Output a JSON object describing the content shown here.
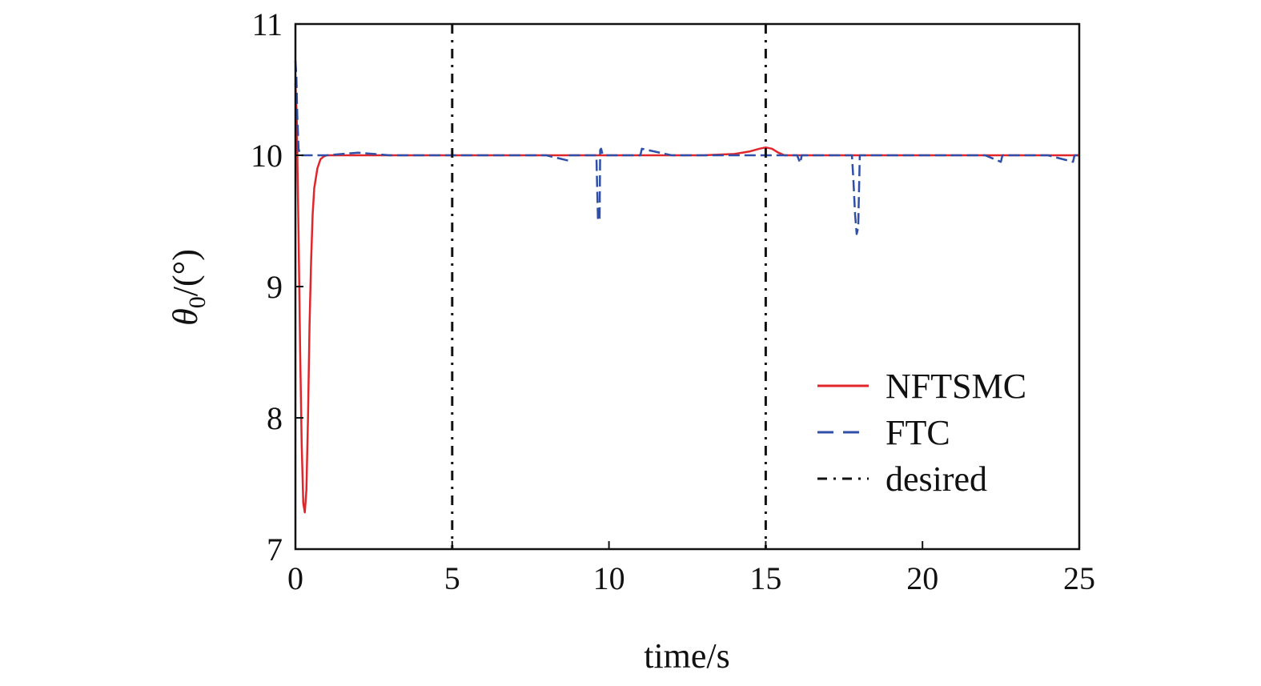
{
  "chart_data": {
    "type": "line",
    "xlabel": "time/s",
    "ylabel_symbol": "θ",
    "ylabel_subscript": "0",
    "ylabel_unit": "/(°)",
    "xlim": [
      0,
      25
    ],
    "ylim": [
      7,
      11
    ],
    "xticks": [
      0,
      5,
      10,
      15,
      20,
      25
    ],
    "yticks": [
      7,
      8,
      9,
      10,
      11
    ],
    "xtick_labels": [
      "0",
      "5",
      "10",
      "15",
      "20",
      "25"
    ],
    "ytick_labels": [
      "7",
      "8",
      "9",
      "10",
      "11"
    ],
    "grid": false,
    "legend_position": "bottom-right",
    "series": [
      {
        "name": "NFTSMC",
        "color": "#e0262a",
        "style": "solid",
        "x": [
          0,
          0.04,
          0.1,
          0.15,
          0.2,
          0.25,
          0.3,
          0.35,
          0.4,
          0.45,
          0.5,
          0.55,
          0.6,
          0.7,
          0.8,
          0.9,
          1.0,
          1.2,
          2,
          5,
          10,
          13,
          14,
          14.5,
          14.8,
          15.0,
          15.2,
          15.4,
          15.6,
          16,
          18,
          20,
          25
        ],
        "y": [
          10.55,
          10.3,
          9.4,
          8.5,
          7.8,
          7.35,
          7.28,
          7.45,
          8.0,
          8.7,
          9.2,
          9.55,
          9.75,
          9.9,
          9.97,
          9.99,
          10.0,
          10.0,
          10.0,
          10.0,
          10.0,
          10.0,
          10.01,
          10.03,
          10.05,
          10.06,
          10.05,
          10.02,
          10.0,
          10.0,
          10.0,
          10.0,
          10.0
        ]
      },
      {
        "name": "FTC",
        "color": "#2f4fa8",
        "style": "dashed",
        "x": [
          0,
          0.03,
          0.06,
          0.1,
          0.15,
          0.2,
          0.3,
          1,
          2,
          3,
          4,
          5,
          6,
          7,
          8,
          8.7,
          8.75,
          9,
          9.6,
          9.65,
          9.7,
          9.72,
          9.75,
          9.78,
          9.82,
          10,
          11,
          11.05,
          12,
          13,
          14,
          15,
          16,
          16.1,
          16.15,
          17,
          17.75,
          17.8,
          17.85,
          17.9,
          17.95,
          18.0,
          18.1,
          19,
          20,
          21,
          22,
          22.5,
          22.55,
          23,
          24,
          24.8,
          24.85,
          25
        ],
        "y": [
          10.72,
          10.6,
          10.3,
          10.05,
          10.0,
          10.0,
          10.0,
          10.0,
          10.02,
          10.0,
          10.0,
          10.0,
          10.0,
          10.0,
          10.0,
          9.96,
          10.0,
          10.0,
          10.0,
          9.5,
          9.52,
          10.04,
          10.05,
          10.02,
          10.0,
          10.0,
          10.0,
          10.05,
          10.0,
          10.0,
          10.0,
          10.0,
          10.0,
          9.94,
          10.0,
          10.0,
          10.0,
          9.8,
          9.55,
          9.4,
          9.45,
          10.0,
          10.0,
          10.0,
          10.0,
          10.0,
          10.0,
          9.95,
          10.0,
          10.0,
          10.0,
          9.95,
          10.0,
          10.0
        ]
      },
      {
        "name": "desired",
        "color": "#111111",
        "style": "dashdot",
        "vertical_lines_x": [
          5,
          15
        ]
      }
    ]
  }
}
